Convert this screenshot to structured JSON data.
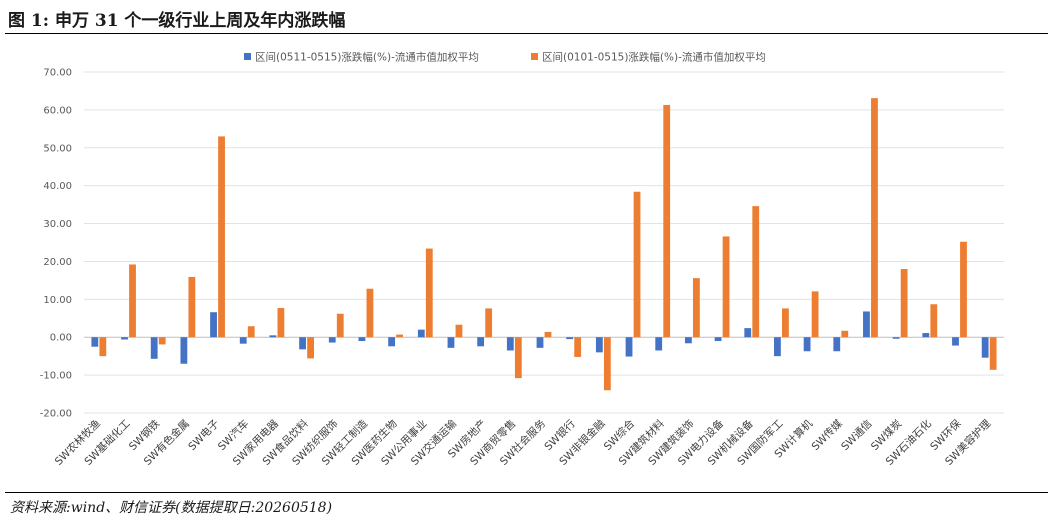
{
  "figure": {
    "title": "图 1:  申万 31 个一级行业上周及年内涨跌幅",
    "source": "资料来源:wind、财信证券(数据提取日:20260518)"
  },
  "chart_data": {
    "type": "bar",
    "categories": [
      "SW农林牧渔",
      "SW基础化工",
      "SW钢铁",
      "SW有色金属",
      "SW电子",
      "SW汽车",
      "SW家用电器",
      "SW食品饮料",
      "SW纺织服饰",
      "SW轻工制造",
      "SW医药生物",
      "SW公用事业",
      "SW交通运输",
      "SW房地产",
      "SW商贸零售",
      "SW社会服务",
      "SW银行",
      "SW非银金融",
      "SW综合",
      "SW建筑材料",
      "SW建筑装饰",
      "SW电力设备",
      "SW机械设备",
      "SW国防军工",
      "SW计算机",
      "SW传媒",
      "SW通信",
      "SW煤炭",
      "SW石油石化",
      "SW环保",
      "SW美容护理"
    ],
    "series": [
      {
        "name": "区间(0511-0515)涨跌幅(%)-流通市值加权平均",
        "color": "#4472C4",
        "values": [
          -2.5,
          -0.6,
          -5.7,
          -7.0,
          6.6,
          -1.7,
          0.5,
          -3.2,
          -1.4,
          -1.0,
          -2.4,
          2.0,
          -2.8,
          -2.4,
          -3.5,
          -2.8,
          -0.5,
          -4.0,
          -5.1,
          -3.5,
          -1.6,
          -1.0,
          2.4,
          -5.0,
          -3.7,
          -3.7,
          6.8,
          -0.4,
          1.1,
          -2.2,
          -5.4
        ]
      },
      {
        "name": "区间(0101-0515)涨跌幅(%)-流通市值加权平均",
        "color": "#ED7D31",
        "values": [
          -5.0,
          19.2,
          -1.9,
          15.9,
          53.0,
          2.9,
          7.7,
          -5.6,
          6.2,
          12.8,
          0.7,
          23.4,
          3.3,
          7.6,
          -10.8,
          1.4,
          -5.2,
          -14.0,
          38.4,
          61.3,
          15.6,
          26.6,
          34.6,
          7.6,
          12.1,
          1.7,
          63.1,
          18.0,
          8.7,
          25.2,
          -8.6
        ]
      }
    ],
    "y_ticks": [
      "70.00",
      "60.00",
      "50.00",
      "40.00",
      "30.00",
      "20.00",
      "10.00",
      "0.00",
      "-10.00",
      "-20.00"
    ],
    "ylim": [
      -20,
      70
    ],
    "grid": true,
    "legend_position": "top-center"
  }
}
